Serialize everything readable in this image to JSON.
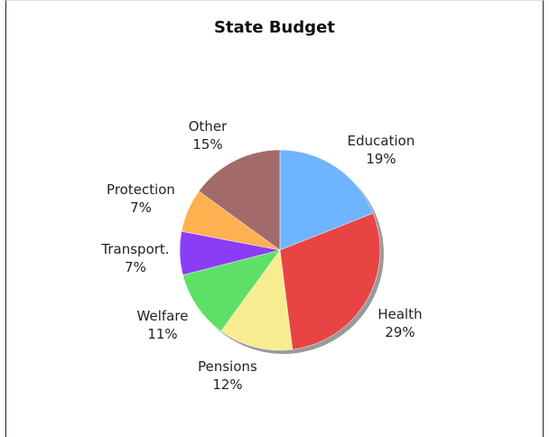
{
  "chart_data": {
    "type": "pie",
    "title": "State Budget",
    "slices": [
      {
        "label": "Education",
        "value": 19,
        "display": "19%",
        "color": "#6fb4ff"
      },
      {
        "label": "Health",
        "value": 29,
        "display": "29%",
        "color": "#e84444"
      },
      {
        "label": "Pensions",
        "value": 12,
        "display": "12%",
        "color": "#f8ec91"
      },
      {
        "label": "Welfare",
        "value": 11,
        "display": "11%",
        "color": "#5ee066"
      },
      {
        "label": "Transport.",
        "value": 7,
        "display": "7%",
        "color": "#8a3cf6"
      },
      {
        "label": "Protection",
        "value": 7,
        "display": "7%",
        "color": "#ffb04f"
      },
      {
        "label": "Other",
        "value": 15,
        "display": "15%",
        "color": "#a36a6a"
      }
    ],
    "start_angle_deg": 0,
    "direction": "clockwise"
  }
}
